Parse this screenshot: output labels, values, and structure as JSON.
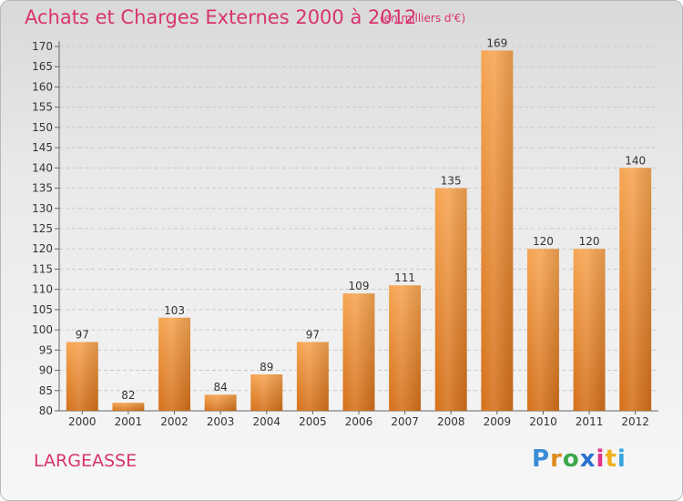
{
  "title": "Achats et Charges Externes 2000 à 2012",
  "subtitle": "(en milliers d'€)",
  "commune": "LARGEASSE",
  "logo": {
    "letters": [
      "P",
      "r",
      "o",
      "x",
      "i",
      "t",
      "i"
    ],
    "colors": [
      "#3a8dd6",
      "#e08a1c",
      "#3aa84a",
      "#2a6fd0",
      "#e0338c",
      "#f0b11c",
      "#36a5df"
    ]
  },
  "colors": {
    "bar": "#f08c2c",
    "title": "#d8336f"
  },
  "chart_data": {
    "type": "bar",
    "title": "Achats et Charges Externes 2000 à 2012",
    "subtitle": "(en milliers d'€)",
    "categories": [
      "2000",
      "2001",
      "2002",
      "2003",
      "2004",
      "2005",
      "2006",
      "2007",
      "2008",
      "2009",
      "2010",
      "2011",
      "2012"
    ],
    "values": [
      97,
      82,
      103,
      84,
      89,
      97,
      109,
      111,
      135,
      169,
      120,
      120,
      140
    ],
    "ylim": [
      80,
      170
    ],
    "yticks": [
      80,
      85,
      90,
      95,
      100,
      105,
      110,
      115,
      120,
      125,
      130,
      135,
      140,
      145,
      150,
      155,
      160,
      165,
      170
    ],
    "grid": true,
    "data_labels": true
  }
}
